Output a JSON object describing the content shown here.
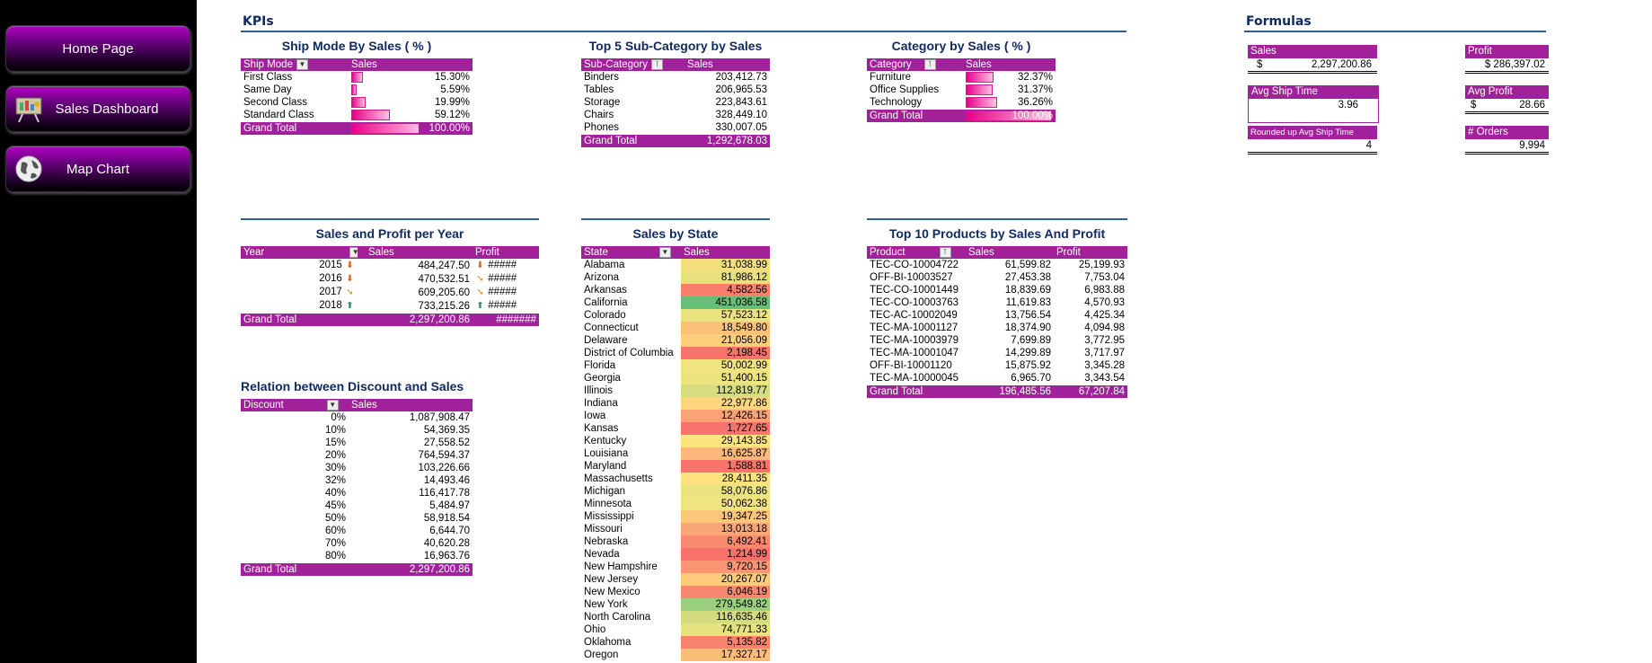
{
  "nav": [
    {
      "label": "Home Page",
      "icon": "none"
    },
    {
      "label": "Sales Dashboard",
      "icon": "presentation-icon"
    },
    {
      "label": "Map Chart",
      "icon": "globe-icon"
    }
  ],
  "kpis_header": "KPIs",
  "formulas_header": "Formulas",
  "ship_mode": {
    "title": "Ship Mode By Sales ( % )",
    "col1": "Ship Mode",
    "col2": "Sales",
    "rows": [
      {
        "name": "First Class",
        "value": "15.30%",
        "pct": 15.3
      },
      {
        "name": "Same Day",
        "value": "5.59%",
        "pct": 5.59
      },
      {
        "name": "Second Class",
        "value": "19.99%",
        "pct": 19.99
      },
      {
        "name": "Standard Class",
        "value": "59.12%",
        "pct": 59.12
      }
    ],
    "total_label": "Grand Total",
    "total_value": "100.00%",
    "total_pct": 100
  },
  "top5": {
    "title": "Top 5 Sub-Category by Sales",
    "col1": "Sub-Category",
    "col2": "Sales",
    "rows": [
      {
        "name": "Binders",
        "value": "203,412.73"
      },
      {
        "name": "Tables",
        "value": "206,965.53"
      },
      {
        "name": "Storage",
        "value": "223,843.61"
      },
      {
        "name": "Chairs",
        "value": "328,449.10"
      },
      {
        "name": "Phones",
        "value": "330,007.05"
      }
    ],
    "total_label": "Grand Total",
    "total_value": "1,292,678.03"
  },
  "category": {
    "title": "Category by Sales ( % )",
    "col1": "Category",
    "col2": "Sales",
    "rows": [
      {
        "name": "Furniture",
        "value": "32.37%",
        "pct": 32.37
      },
      {
        "name": "Office Supplies",
        "value": "31.37%",
        "pct": 31.37
      },
      {
        "name": "Technology",
        "value": "36.26%",
        "pct": 36.26
      }
    ],
    "total_label": "Grand Total",
    "total_value": "100.00%",
    "total_pct": 100
  },
  "year": {
    "title": "Sales and Profit per Year",
    "col1": "Year",
    "col2": "Sales",
    "col3": "Profit",
    "rows": [
      {
        "year": "2015",
        "sales": "484,247.50",
        "profit": "#####",
        "s_arrow": "down",
        "p_arrow": "down"
      },
      {
        "year": "2016",
        "sales": "470,532.51",
        "profit": "#####",
        "s_arrow": "down",
        "p_arrow": "side"
      },
      {
        "year": "2017",
        "sales": "609,205.60",
        "profit": "#####",
        "s_arrow": "side",
        "p_arrow": "side"
      },
      {
        "year": "2018",
        "sales": "733,215.26",
        "profit": "#####",
        "s_arrow": "up",
        "p_arrow": "up"
      }
    ],
    "total_label": "Grand Total",
    "total_sales": "2,297,200.86",
    "total_profit": "#######"
  },
  "discount": {
    "title": "Relation between Discount and Sales",
    "col1": "Discount",
    "col2": "Sales",
    "rows": [
      {
        "d": "0%",
        "v": "1,087,908.47"
      },
      {
        "d": "10%",
        "v": "54,369.35"
      },
      {
        "d": "15%",
        "v": "27,558.52"
      },
      {
        "d": "20%",
        "v": "764,594.37"
      },
      {
        "d": "30%",
        "v": "103,226.66"
      },
      {
        "d": "32%",
        "v": "14,493.46"
      },
      {
        "d": "40%",
        "v": "116,417.78"
      },
      {
        "d": "45%",
        "v": "5,484.97"
      },
      {
        "d": "50%",
        "v": "58,918.54"
      },
      {
        "d": "60%",
        "v": "6,644.70"
      },
      {
        "d": "70%",
        "v": "40,620.28"
      },
      {
        "d": "80%",
        "v": "16,963.76"
      }
    ],
    "total_label": "Grand Total",
    "total_value": "2,297,200.86"
  },
  "state": {
    "title": "Sales by State",
    "col1": "State",
    "col2": "Sales",
    "rows": [
      {
        "s": "Alabama",
        "v": "31,038.99",
        "c": "#f3e07c"
      },
      {
        "s": "Arizona",
        "v": "81,986.12",
        "c": "#e6e07d"
      },
      {
        "s": "Arkansas",
        "v": "4,582.56",
        "c": "#f8806d"
      },
      {
        "s": "California",
        "v": "451,036.58",
        "c": "#66bf78"
      },
      {
        "s": "Colorado",
        "v": "57,523.12",
        "c": "#ebe37f"
      },
      {
        "s": "Connecticut",
        "v": "18,549.80",
        "c": "#fcc179"
      },
      {
        "s": "Delaware",
        "v": "21,056.09",
        "c": "#fdcf7c"
      },
      {
        "s": "District of Columbia",
        "v": "2,198.45",
        "c": "#f8736b"
      },
      {
        "s": "Florida",
        "v": "50,002.99",
        "c": "#f0e47f"
      },
      {
        "s": "Georgia",
        "v": "51,400.15",
        "c": "#eee47f"
      },
      {
        "s": "Illinois",
        "v": "112,819.77",
        "c": "#d6dc80"
      },
      {
        "s": "Indiana",
        "v": "22,977.86",
        "c": "#fcd57d"
      },
      {
        "s": "Iowa",
        "v": "12,426.15",
        "c": "#fba276"
      },
      {
        "s": "Kansas",
        "v": "1,727.65",
        "c": "#f8736b"
      },
      {
        "s": "Kentucky",
        "v": "29,143.85",
        "c": "#fde47f"
      },
      {
        "s": "Louisiana",
        "v": "16,625.87",
        "c": "#fcb87a"
      },
      {
        "s": "Maryland",
        "v": "1,588.81",
        "c": "#f8736b"
      },
      {
        "s": "Massachusetts",
        "v": "28,411.35",
        "c": "#fde27f"
      },
      {
        "s": "Michigan",
        "v": "58,076.86",
        "c": "#ebe37f"
      },
      {
        "s": "Minnesota",
        "v": "50,062.38",
        "c": "#f0e47f"
      },
      {
        "s": "Mississippi",
        "v": "19,347.25",
        "c": "#fcc67b"
      },
      {
        "s": "Missouri",
        "v": "13,013.18",
        "c": "#fba677"
      },
      {
        "s": "Nebraska",
        "v": "6,492.41",
        "c": "#f98a6f"
      },
      {
        "s": "Nevada",
        "v": "1,214.99",
        "c": "#f8716b"
      },
      {
        "s": "New Hampshire",
        "v": "9,720.15",
        "c": "#fa9673"
      },
      {
        "s": "New Jersey",
        "v": "20,267.07",
        "c": "#fdca7b"
      },
      {
        "s": "New Mexico",
        "v": "6,046.19",
        "c": "#f98870"
      },
      {
        "s": "New York",
        "v": "279,549.82",
        "c": "#9ad07e"
      },
      {
        "s": "North Carolina",
        "v": "116,635.46",
        "c": "#d4dc80"
      },
      {
        "s": "Ohio",
        "v": "74,771.33",
        "c": "#e6e27f"
      },
      {
        "s": "Oklahoma",
        "v": "5,135.82",
        "c": "#f8836d"
      },
      {
        "s": "Oregon",
        "v": "17,327.17",
        "c": "#fcbd79"
      }
    ]
  },
  "top10": {
    "title": "Top 10 Products by Sales And Profit",
    "col1": "Product",
    "col2": "Sales",
    "col3": "Profit",
    "rows": [
      {
        "p": "TEC-CO-10004722",
        "s": "61,599.82",
        "pr": "25,199.93"
      },
      {
        "p": "OFF-BI-10003527",
        "s": "27,453.38",
        "pr": "7,753.04"
      },
      {
        "p": "TEC-CO-10001449",
        "s": "18,839.69",
        "pr": "6,983.88"
      },
      {
        "p": "TEC-CO-10003763",
        "s": "11,619.83",
        "pr": "4,570.93"
      },
      {
        "p": "TEC-AC-10002049",
        "s": "13,756.54",
        "pr": "4,425.34"
      },
      {
        "p": "TEC-MA-10001127",
        "s": "18,374.90",
        "pr": "4,094.98"
      },
      {
        "p": "TEC-MA-10003979",
        "s": "7,699.89",
        "pr": "3,772.95"
      },
      {
        "p": "TEC-MA-10001047",
        "s": "14,299.89",
        "pr": "3,717.97"
      },
      {
        "p": "OFF-BI-10001120",
        "s": "15,875.92",
        "pr": "3,345.28"
      },
      {
        "p": "TEC-MA-10000045",
        "s": "6,965.70",
        "pr": "3,343.54"
      }
    ],
    "total_label": "Grand Total",
    "total_sales": "196,485.56",
    "total_profit": "67,207.84"
  },
  "formulas": {
    "sales_label": "Sales",
    "sales_cur": "$",
    "sales_value": "2,297,200.86",
    "profit_label": "Profit",
    "profit_value": "$ 286,397.02",
    "avg_ship_label": "Avg Ship Time",
    "avg_ship_value": "3.96",
    "avg_profit_label": "Avg  Profit",
    "avg_profit_cur": "$",
    "avg_profit_value": "28.66",
    "rounded_label": "Rounded up Avg Ship Time",
    "rounded_value": "4",
    "orders_label": "# Orders",
    "orders_value": "9,994"
  },
  "colors": {
    "accent": "#a0219a",
    "header_text": "#0e2a5e",
    "rule": "#2f5f8a"
  }
}
